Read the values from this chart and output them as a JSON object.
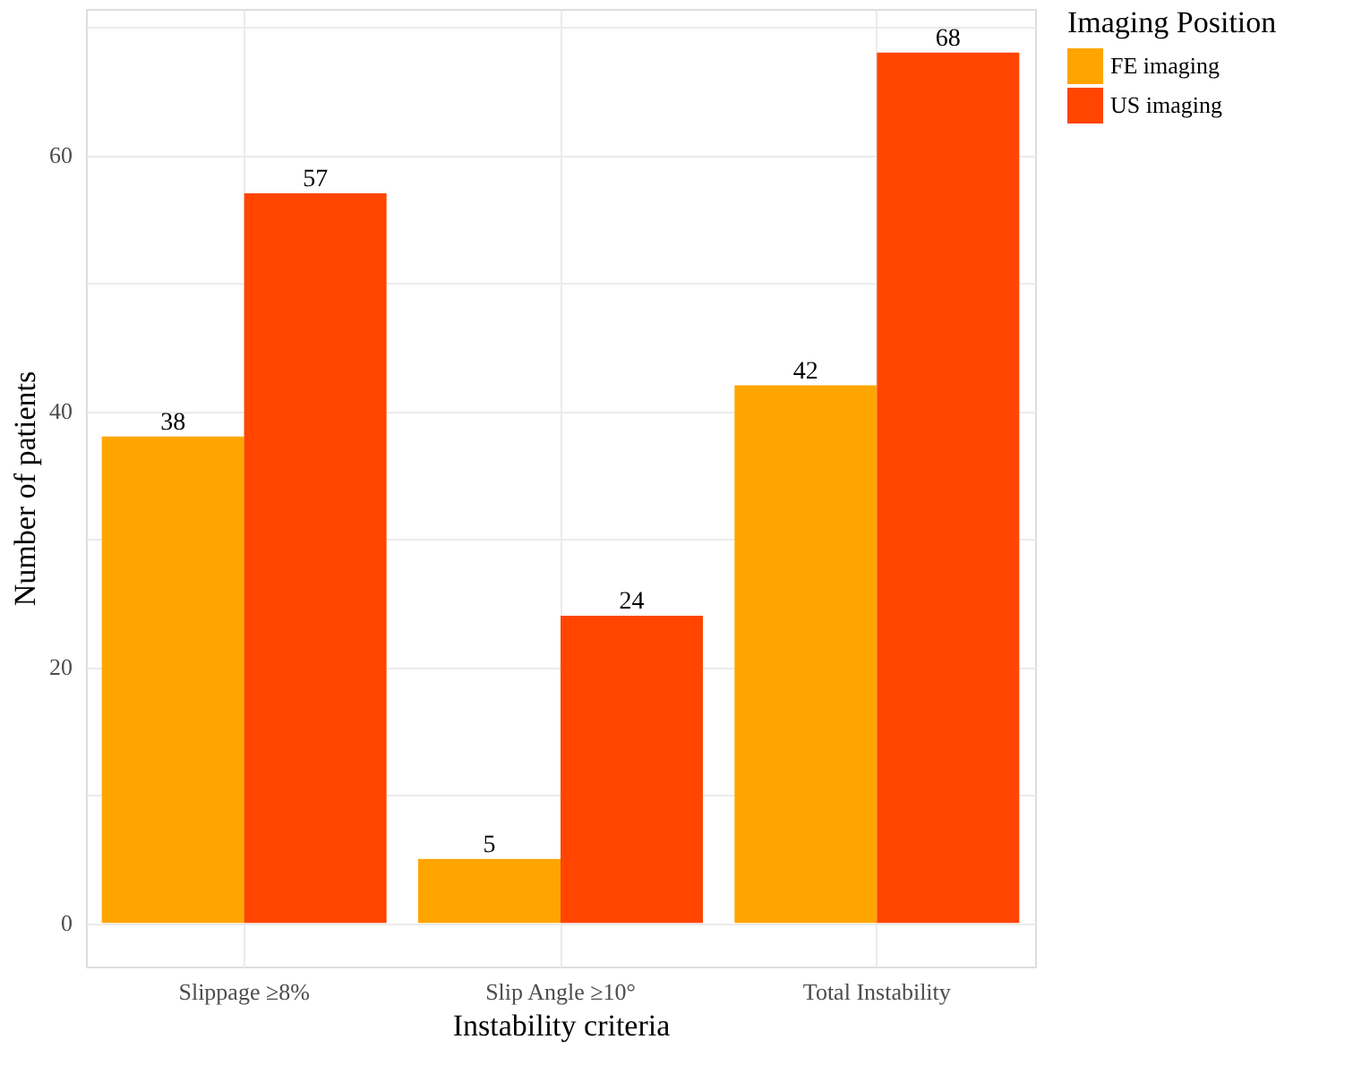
{
  "chart_data": {
    "type": "bar",
    "xlabel": "Instability criteria",
    "ylabel": "Number of patients",
    "legend_title": "Imaging Position",
    "categories": [
      "Slippage ≥8%",
      "Slip Angle ≥10°",
      "Total Instability"
    ],
    "series": [
      {
        "name": "FE imaging",
        "color": "#ffa500",
        "values": [
          38,
          5,
          42
        ]
      },
      {
        "name": "US imaging",
        "color": "#ff4500",
        "values": [
          57,
          24,
          68
        ]
      }
    ],
    "ylim": [
      -3.4,
      71.4
    ],
    "yticks": [
      0,
      {
        "value": 10,
        "label": null
      },
      20,
      {
        "value": 30,
        "label": null
      },
      40,
      {
        "value": 50,
        "label": null
      },
      60,
      {
        "value": 70,
        "label": null
      }
    ],
    "grid": true,
    "legend": "right",
    "data_labels": true
  }
}
